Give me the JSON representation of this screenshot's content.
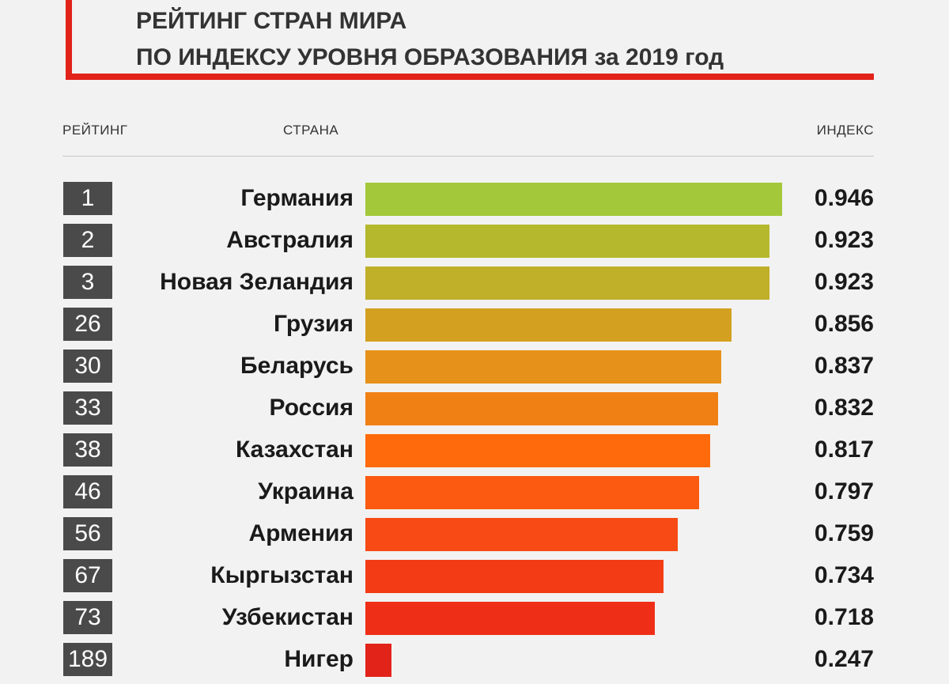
{
  "title": {
    "line1": "РЕЙТИНГ СТРАН МИРА",
    "line2": "ПО ИНДЕКСУ УРОВНЯ ОБРАЗОВАНИЯ за 2019 год"
  },
  "headers": {
    "rank": "РЕЙТИНГ",
    "country": "СТРАНА",
    "index": "ИНДЕКС"
  },
  "colors": {
    "accent": "#e2231a",
    "rank_bg": "#4a4a4a"
  },
  "chart_data": {
    "type": "bar",
    "orientation": "horizontal",
    "categories": [
      "Германия",
      "Австралия",
      "Новая Зеландия",
      "Грузия",
      "Беларусь",
      "Россия",
      "Казахстан",
      "Украина",
      "Армения",
      "Кыргызстан",
      "Узбекистан",
      "Нигер"
    ],
    "ranks": [
      "1",
      "2",
      "3",
      "26",
      "30",
      "33",
      "38",
      "46",
      "56",
      "67",
      "73",
      "189"
    ],
    "values": [
      0.946,
      0.923,
      0.923,
      0.856,
      0.837,
      0.832,
      0.817,
      0.797,
      0.759,
      0.734,
      0.718,
      0.247
    ],
    "value_labels": [
      "0.946",
      "0.923",
      "0.923",
      "0.856",
      "0.837",
      "0.832",
      "0.817",
      "0.797",
      "0.759",
      "0.734",
      "0.718",
      "0.247"
    ],
    "bar_colors": [
      "#a3c93a",
      "#b5b82c",
      "#c0af28",
      "#d4a020",
      "#e6911a",
      "#f08014",
      "#ff6a0c",
      "#fb5a10",
      "#f74a14",
      "#f33c16",
      "#ef2e18",
      "#e2231a"
    ],
    "xlim": [
      0.2,
      0.946
    ],
    "grid": false,
    "legend": "none"
  }
}
